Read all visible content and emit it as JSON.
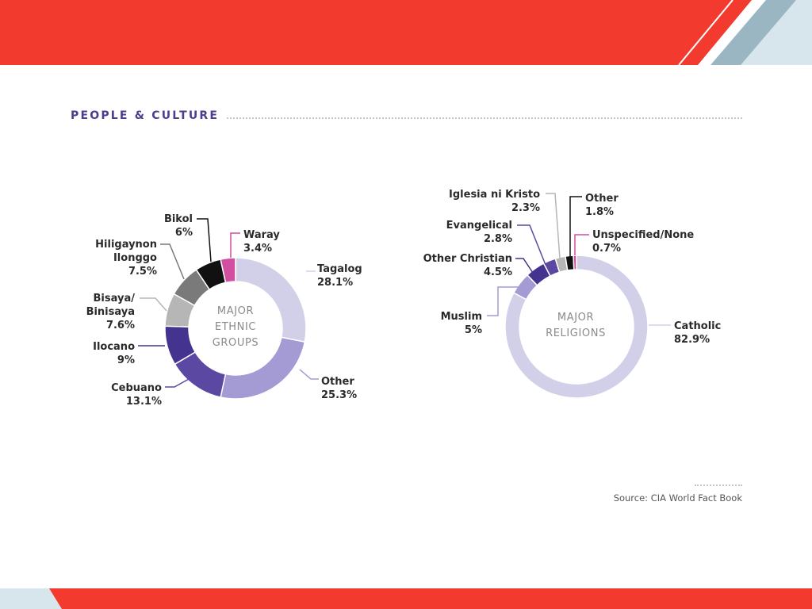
{
  "page": {
    "section_title": "PEOPLE & CULTURE",
    "source": "Source: CIA World Fact Book",
    "colors": {
      "red": "#f23a2e",
      "steel": "#9ab6c3",
      "pale": "#d7e6ec",
      "title": "#4a3f8f"
    }
  },
  "chart_data": [
    {
      "type": "pie",
      "variant": "donut",
      "center_label": [
        "MAJOR",
        "ETHNIC",
        "GROUPS"
      ],
      "slices": [
        {
          "label": [
            "Tagalog"
          ],
          "value": 28.1,
          "value_label": "28.1%",
          "color": "#d2d0e8"
        },
        {
          "label": [
            "Other"
          ],
          "value": 25.3,
          "value_label": "25.3%",
          "color": "#a49ad4"
        },
        {
          "label": [
            "Cebuano"
          ],
          "value": 13.1,
          "value_label": "13.1%",
          "color": "#5a48a3"
        },
        {
          "label": [
            "Ilocano"
          ],
          "value": 9,
          "value_label": "9%",
          "color": "#44338f"
        },
        {
          "label": [
            "Bisaya/",
            "Binisaya"
          ],
          "value": 7.6,
          "value_label": "7.6%",
          "color": "#b6b6b6"
        },
        {
          "label": [
            "Hiligaynon",
            "Ilonggo"
          ],
          "value": 7.5,
          "value_label": "7.5%",
          "color": "#7a7a7a"
        },
        {
          "label": [
            "Bikol"
          ],
          "value": 6,
          "value_label": "6%",
          "color": "#111111"
        },
        {
          "label": [
            "Waray"
          ],
          "value": 3.4,
          "value_label": "3.4%",
          "color": "#d14fa0"
        }
      ]
    },
    {
      "type": "pie",
      "variant": "donut",
      "center_label": [
        "MAJOR",
        "RELIGIONS"
      ],
      "slices": [
        {
          "label": [
            "Catholic"
          ],
          "value": 82.9,
          "value_label": "82.9%",
          "color": "#d2d0e8"
        },
        {
          "label": [
            "Muslim"
          ],
          "value": 5,
          "value_label": "5%",
          "color": "#a49ad4"
        },
        {
          "label": [
            "Other Christian"
          ],
          "value": 4.5,
          "value_label": "4.5%",
          "color": "#44338f"
        },
        {
          "label": [
            "Evangelical"
          ],
          "value": 2.8,
          "value_label": "2.8%",
          "color": "#5a48a3"
        },
        {
          "label": [
            "Iglesia ni Kristo"
          ],
          "value": 2.3,
          "value_label": "2.3%",
          "color": "#b6b6b6"
        },
        {
          "label": [
            "Other"
          ],
          "value": 1.8,
          "value_label": "1.8%",
          "color": "#111111"
        },
        {
          "label": [
            "Unspecified/None"
          ],
          "value": 0.7,
          "value_label": "0.7%",
          "color": "#d14fa0"
        }
      ]
    }
  ]
}
